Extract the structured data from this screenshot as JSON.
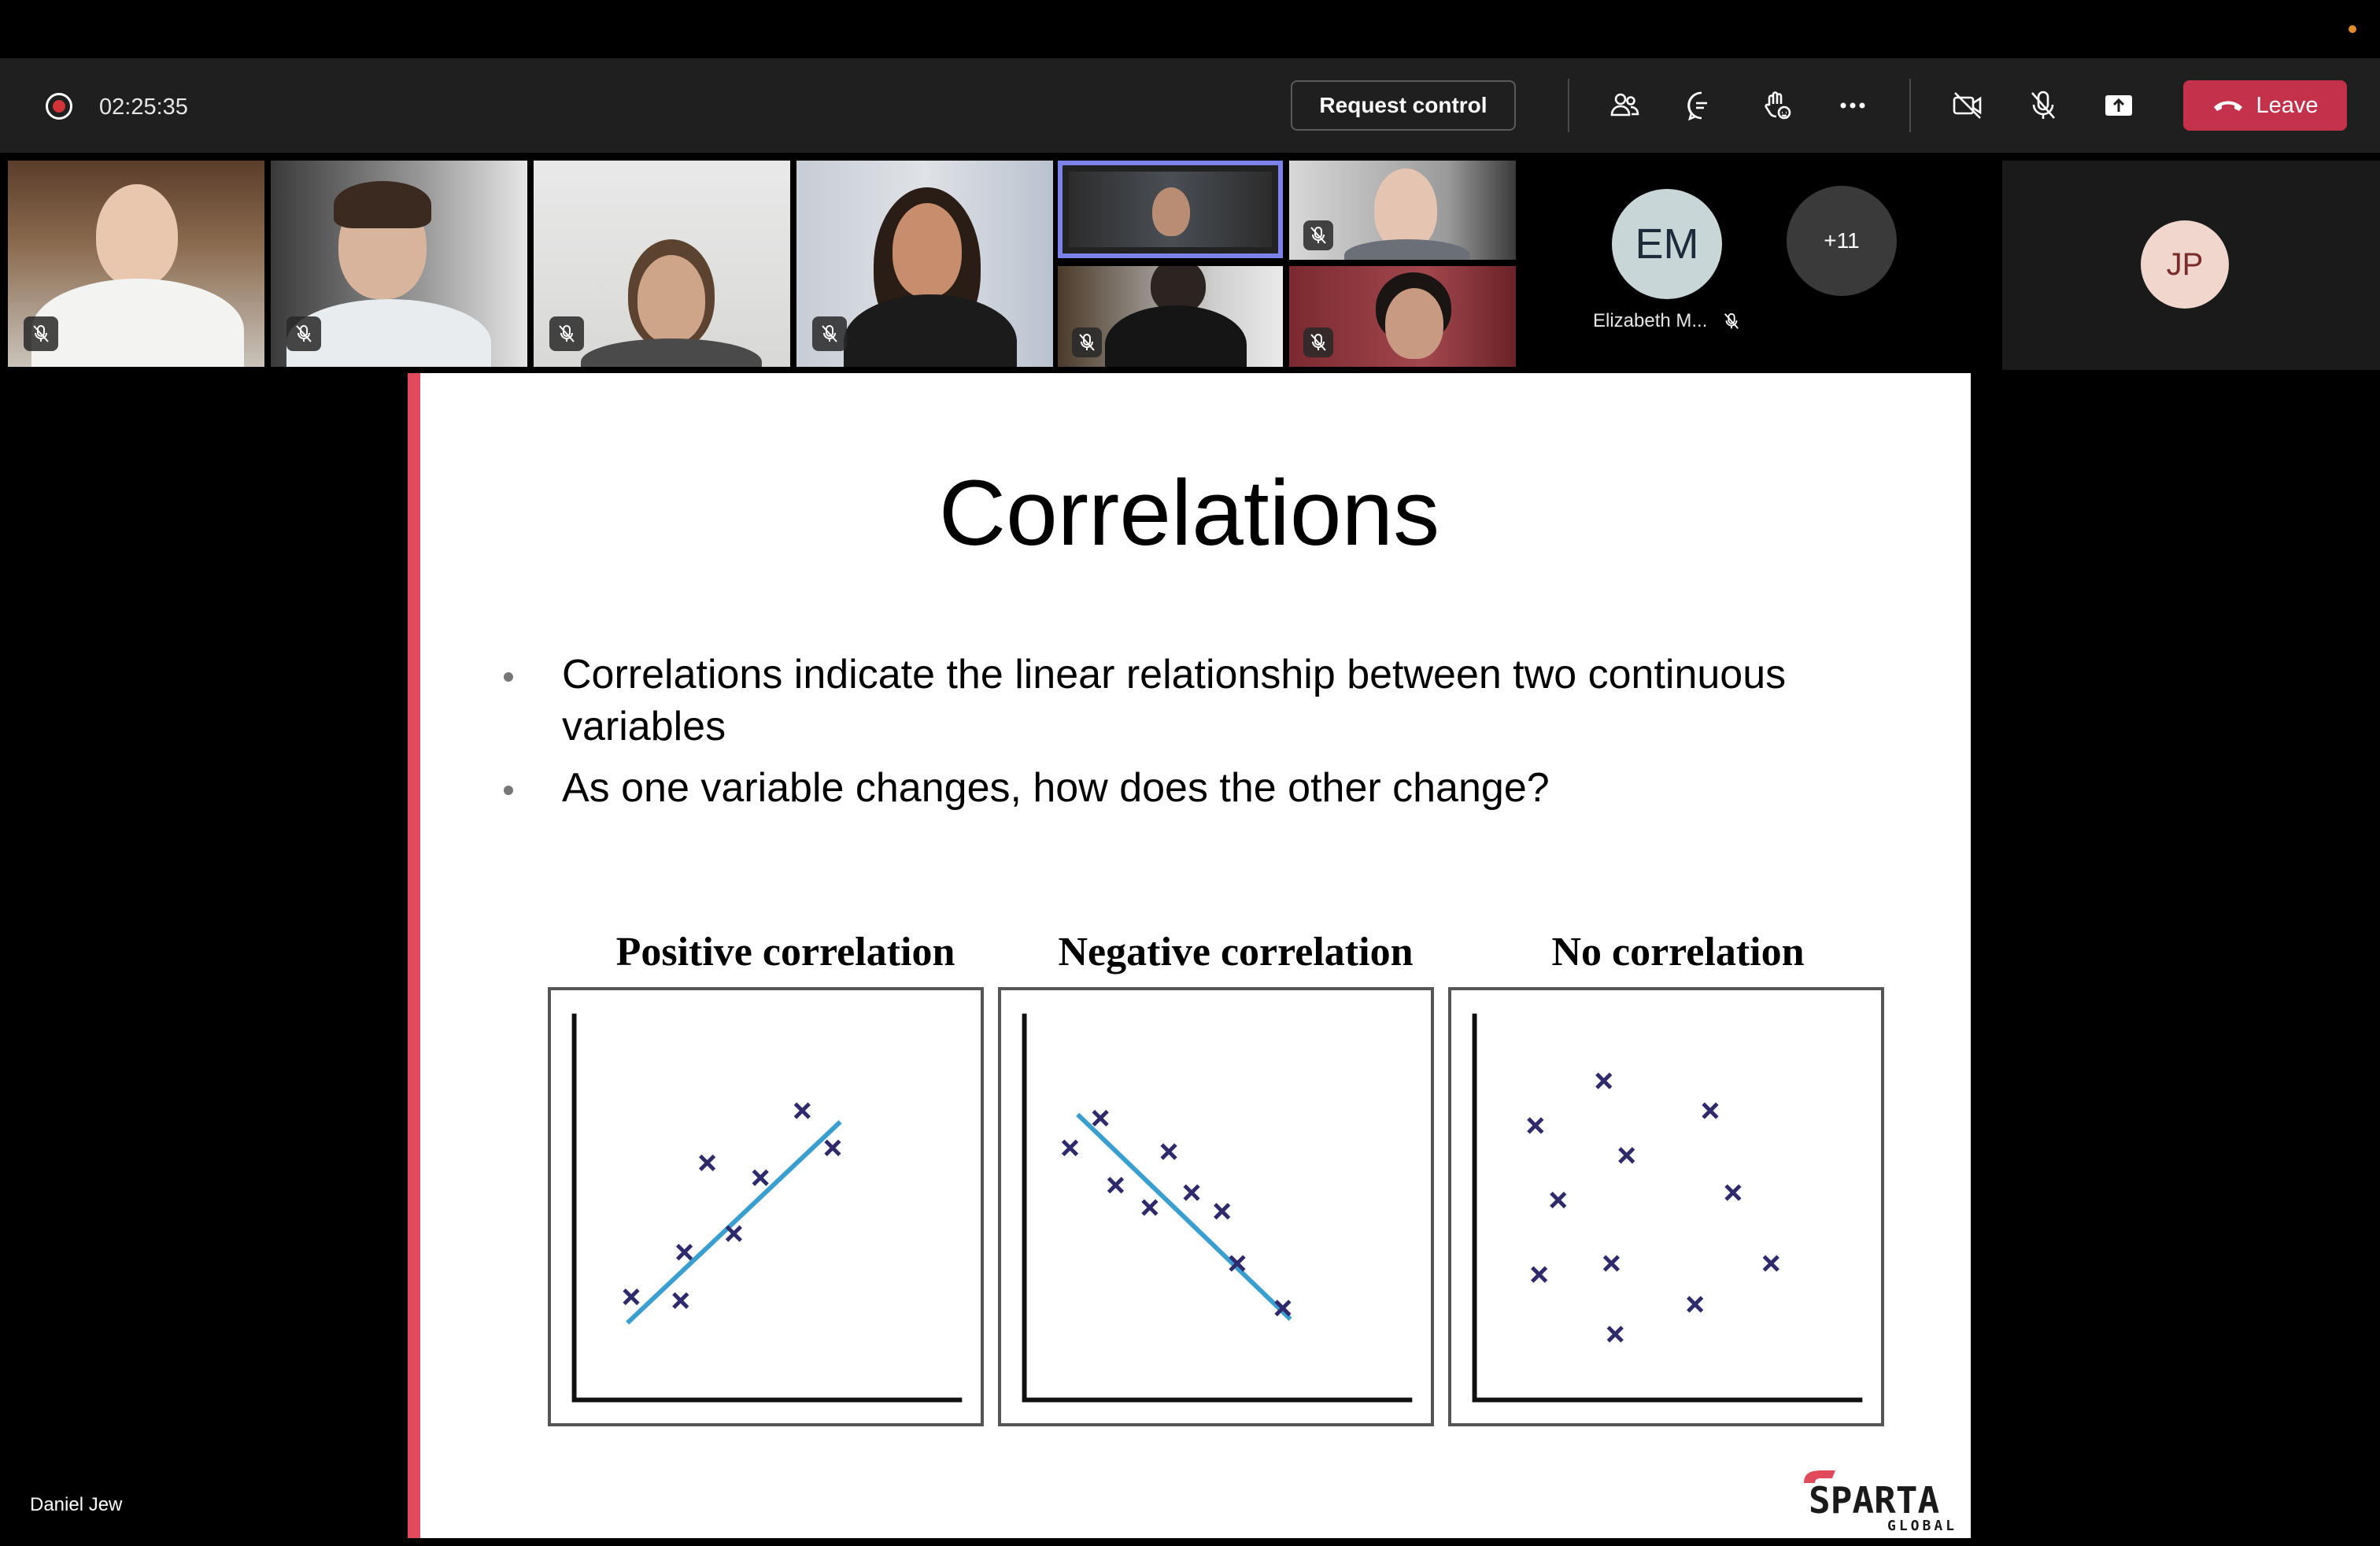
{
  "call": {
    "timer": "02:25:35",
    "request_control_label": "Request control",
    "leave_label": "Leave",
    "overflow_count": "+11",
    "presenter_name": "Daniel Jew"
  },
  "participants": {
    "em": {
      "initials": "EM",
      "name": "Elizabeth M..."
    },
    "jp": {
      "initials": "JP"
    }
  },
  "colors": {
    "toolbar_bg": "#1f1f1f",
    "leave_red": "#c4314b",
    "selected_outline": "#7b83eb",
    "slide_accent": "#e04a5a",
    "trend_line": "#3a9fcf",
    "marker": "#2e2a6b"
  },
  "slide": {
    "title": "Correlations",
    "bullets": [
      "Correlations indicate the linear relationship between two continuous variables",
      "As one variable changes, how does the other change?"
    ],
    "logo_text": "SPARTA",
    "logo_subtext": "GLOBAL"
  },
  "chart_data": [
    {
      "type": "scatter",
      "title": "Positive correlation",
      "xlim": [
        0,
        10
      ],
      "ylim": [
        0,
        10
      ],
      "points": [
        [
          1.5,
          2.6
        ],
        [
          2.8,
          2.5
        ],
        [
          2.9,
          3.8
        ],
        [
          3.5,
          6.2
        ],
        [
          4.2,
          4.3
        ],
        [
          4.9,
          5.8
        ],
        [
          6.0,
          7.6
        ],
        [
          6.8,
          6.6
        ]
      ],
      "trend_line": [
        [
          1.4,
          1.9
        ],
        [
          7.0,
          7.3
        ]
      ]
    },
    {
      "type": "scatter",
      "title": "Negative correlation",
      "xlim": [
        0,
        10
      ],
      "ylim": [
        0,
        10
      ],
      "points": [
        [
          1.2,
          6.6
        ],
        [
          2.0,
          7.4
        ],
        [
          2.4,
          5.6
        ],
        [
          3.3,
          5.0
        ],
        [
          3.8,
          6.5
        ],
        [
          4.4,
          5.4
        ],
        [
          5.6,
          3.5
        ],
        [
          5.2,
          4.9
        ],
        [
          6.8,
          2.3
        ]
      ],
      "trend_line": [
        [
          1.4,
          7.5
        ],
        [
          7.0,
          2.0
        ]
      ]
    },
    {
      "type": "scatter",
      "title": "No correlation",
      "xlim": [
        0,
        10
      ],
      "ylim": [
        0,
        10
      ],
      "points": [
        [
          1.6,
          7.2
        ],
        [
          3.4,
          8.4
        ],
        [
          6.2,
          7.6
        ],
        [
          4.0,
          6.4
        ],
        [
          2.2,
          5.2
        ],
        [
          6.8,
          5.4
        ],
        [
          1.7,
          3.2
        ],
        [
          3.6,
          3.5
        ],
        [
          7.8,
          3.5
        ],
        [
          5.8,
          2.4
        ],
        [
          3.7,
          1.6
        ]
      ],
      "trend_line": null
    }
  ]
}
